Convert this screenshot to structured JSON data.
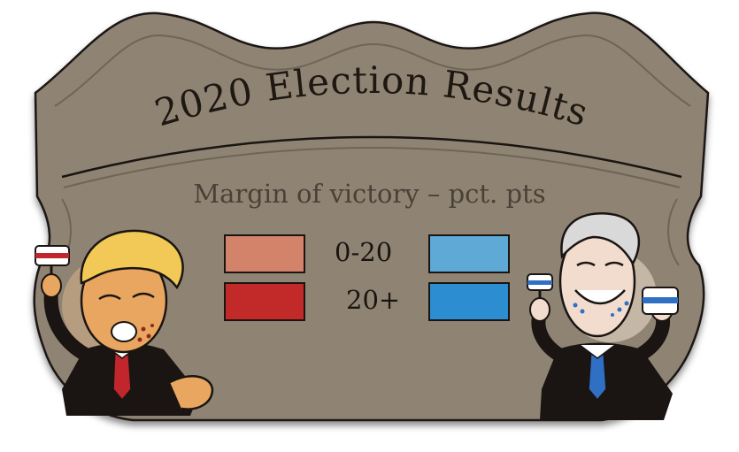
{
  "title": "2020 Election Results",
  "subtitle": "Margin of victory – pct. pts",
  "legend": {
    "rows": [
      {
        "label": "0-20",
        "left_color": "#d4836b",
        "right_color": "#5ea9d6"
      },
      {
        "label": "20+",
        "left_color": "#c22a2a",
        "right_color": "#2c8ed0"
      }
    ]
  },
  "colors": {
    "plaque_fill": "#8f8473",
    "plaque_dark": "#6f6556",
    "outline": "#1a1512",
    "skin_left": "#e9a660",
    "hair_left": "#f2c956",
    "skin_right": "#f1dccd",
    "hair_right": "#d9d9d9",
    "tie_left": "#c0262b",
    "tie_right": "#2f6fc4"
  },
  "icons": {
    "left_character": "cartoon-man-blond-red-tie-icon",
    "right_character": "cartoon-man-gray-hair-blue-tie-icon",
    "left_prop": "fork-with-cake-icon",
    "right_prop_a": "fork-with-cake-icon",
    "right_prop_b": "frosted-cake-icon"
  }
}
